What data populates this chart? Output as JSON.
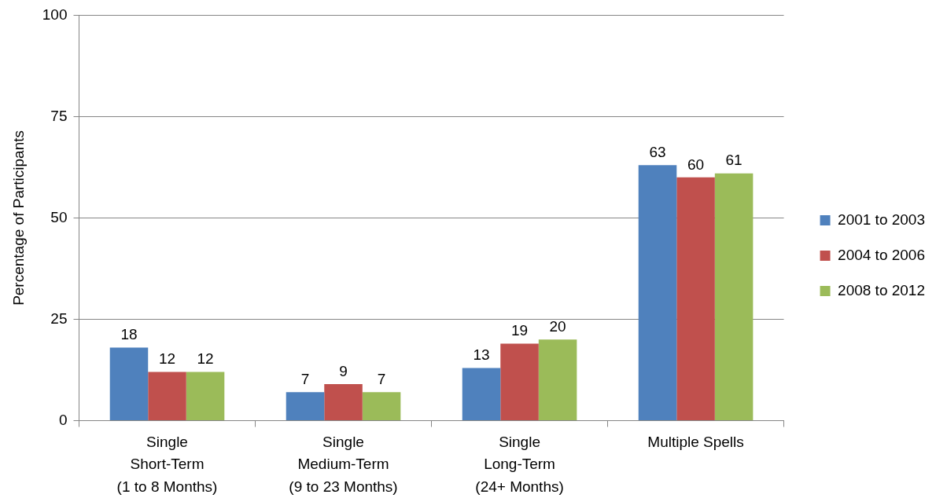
{
  "chart_data": {
    "type": "bar",
    "ylabel": "Percentage of Participants",
    "categories": [
      "Single\nShort-Term\n(1 to 8 Months)",
      "Single\nMedium-Term\n(9 to 23 Months)",
      "Single\nLong-Term\n(24+ Months)",
      "Multiple Spells"
    ],
    "series": [
      {
        "name": "2001 to 2003",
        "color": "#4f81bd",
        "values": [
          18,
          7,
          13,
          63
        ]
      },
      {
        "name": "2004 to 2006",
        "color": "#c0504d",
        "values": [
          12,
          9,
          19,
          60
        ]
      },
      {
        "name": "2008 to 2012",
        "color": "#9bbb59",
        "values": [
          12,
          7,
          20,
          61
        ]
      }
    ],
    "ylim": [
      0,
      100
    ],
    "yticks": [
      0,
      25,
      50,
      75,
      100
    ],
    "grid": "y",
    "legend": "right",
    "data_labels": true
  }
}
